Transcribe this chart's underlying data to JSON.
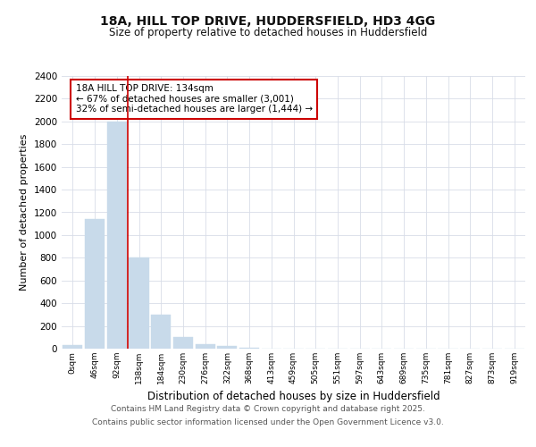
{
  "title_line1": "18A, HILL TOP DRIVE, HUDDERSFIELD, HD3 4GG",
  "title_line2": "Size of property relative to detached houses in Huddersfield",
  "xlabel": "Distribution of detached houses by size in Huddersfield",
  "ylabel": "Number of detached properties",
  "bar_color": "#c8daea",
  "bar_edge_color": "#c8daea",
  "categories": [
    "0sqm",
    "46sqm",
    "92sqm",
    "138sqm",
    "184sqm",
    "230sqm",
    "276sqm",
    "322sqm",
    "368sqm",
    "413sqm",
    "459sqm",
    "505sqm",
    "551sqm",
    "597sqm",
    "643sqm",
    "689sqm",
    "735sqm",
    "781sqm",
    "827sqm",
    "873sqm",
    "919sqm"
  ],
  "values": [
    30,
    1140,
    2000,
    800,
    300,
    100,
    40,
    20,
    10,
    0,
    0,
    0,
    0,
    0,
    0,
    0,
    0,
    0,
    0,
    0,
    0
  ],
  "ylim": [
    0,
    2400
  ],
  "yticks": [
    0,
    200,
    400,
    600,
    800,
    1000,
    1200,
    1400,
    1600,
    1800,
    2000,
    2200,
    2400
  ],
  "property_line_x": 2.5,
  "annotation_title": "18A HILL TOP DRIVE: 134sqm",
  "annotation_line1": "← 67% of detached houses are smaller (3,001)",
  "annotation_line2": "32% of semi-detached houses are larger (1,444) →",
  "annotation_box_color": "#ffffff",
  "annotation_box_edge": "#cc0000",
  "red_line_color": "#cc0000",
  "footer_line1": "Contains HM Land Registry data © Crown copyright and database right 2025.",
  "footer_line2": "Contains public sector information licensed under the Open Government Licence v3.0.",
  "background_color": "#ffffff",
  "grid_color": "#d8dde8"
}
